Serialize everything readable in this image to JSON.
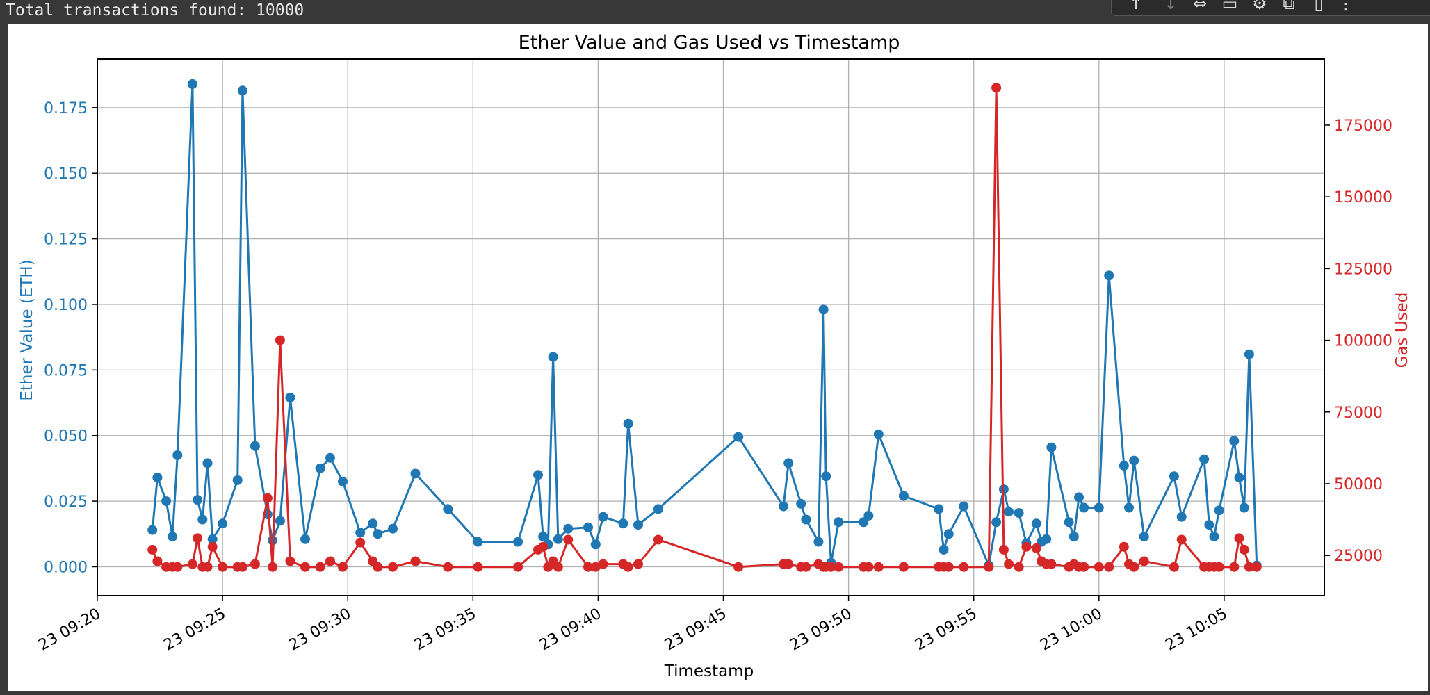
{
  "console": {
    "output_line": "Total transactions found: 10000"
  },
  "toolbar": {
    "icons": [
      "move-up-icon",
      "move-down-icon",
      "link-icon",
      "comment-icon",
      "settings-icon",
      "open-in-tab-icon",
      "delete-icon",
      "more-options-icon"
    ]
  },
  "colors": {
    "ether": "#1f77b4",
    "gas": "#d62728"
  },
  "chart_data": {
    "type": "line",
    "title": "Ether Value and Gas Used vs Timestamp",
    "xlabel": "Timestamp",
    "ylabel_left": "Ether Value (ETH)",
    "ylabel_right": "Gas Used",
    "x_unit": "minutes after 23 09:20",
    "xlim": [
      0,
      49
    ],
    "ylim_left": [
      -0.011,
      0.1935
    ],
    "ylim_right": [
      11000,
      198000
    ],
    "x_ticks": [
      0,
      5,
      10,
      15,
      20,
      25,
      30,
      35,
      40,
      45
    ],
    "x_tick_labels": [
      "23 09:20",
      "23 09:25",
      "23 09:30",
      "23 09:35",
      "23 09:40",
      "23 09:45",
      "23 09:50",
      "23 09:55",
      "23 10:00",
      "23 10:05"
    ],
    "y_ticks_left": [
      0.0,
      0.025,
      0.05,
      0.075,
      0.1,
      0.125,
      0.15,
      0.175
    ],
    "y_tick_labels_left": [
      "0.000",
      "0.025",
      "0.050",
      "0.075",
      "0.100",
      "0.125",
      "0.150",
      "0.175"
    ],
    "y_ticks_right": [
      25000,
      50000,
      75000,
      100000,
      125000,
      150000,
      175000
    ],
    "y_tick_labels_right": [
      "25000",
      "50000",
      "75000",
      "100000",
      "125000",
      "150000",
      "175000"
    ],
    "grid": true,
    "series": [
      {
        "name": "Ether Value (ETH)",
        "axis": "left",
        "x": [
          2.2,
          2.4,
          2.75,
          3.0,
          3.2,
          3.8,
          4.0,
          4.2,
          4.4,
          4.6,
          5.0,
          5.6,
          5.8,
          6.3,
          6.8,
          7.0,
          7.3,
          7.7,
          8.3,
          8.9,
          9.3,
          9.8,
          10.5,
          11.0,
          11.2,
          11.8,
          12.7,
          14.0,
          15.2,
          16.8,
          17.6,
          17.8,
          18.0,
          18.2,
          18.4,
          18.8,
          19.6,
          19.9,
          20.2,
          21.0,
          21.2,
          21.6,
          22.4,
          25.6,
          27.4,
          27.6,
          28.1,
          28.3,
          28.8,
          29.0,
          29.1,
          29.3,
          29.6,
          30.6,
          30.8,
          31.2,
          32.2,
          33.6,
          33.8,
          34.0,
          34.6,
          35.6,
          35.9,
          36.2,
          36.4,
          36.8,
          37.1,
          37.5,
          37.7,
          37.9,
          38.1,
          38.8,
          39.0,
          39.2,
          39.4,
          40.0,
          40.4,
          41.0,
          41.2,
          41.4,
          41.8,
          43.0,
          43.3,
          44.2,
          44.4,
          44.6,
          44.8,
          45.4,
          45.6,
          45.8,
          46.0,
          46.3
        ],
        "y": [
          0.014,
          0.034,
          0.025,
          0.0115,
          0.0425,
          0.184,
          0.0255,
          0.018,
          0.0395,
          0.0105,
          0.0165,
          0.033,
          0.1815,
          0.046,
          0.02,
          0.01,
          0.0175,
          0.0645,
          0.0105,
          0.0375,
          0.0415,
          0.0325,
          0.013,
          0.0165,
          0.0125,
          0.0145,
          0.0355,
          0.022,
          0.0095,
          0.0095,
          0.035,
          0.0115,
          0.0085,
          0.08,
          0.0105,
          0.0145,
          0.015,
          0.0085,
          0.019,
          0.0165,
          0.0545,
          0.016,
          0.022,
          0.0495,
          0.023,
          0.0395,
          0.024,
          0.018,
          0.0095,
          0.098,
          0.0345,
          0.0015,
          0.017,
          0.017,
          0.0195,
          0.0505,
          0.027,
          0.022,
          0.0065,
          0.0125,
          0.023,
          0.0005,
          0.017,
          0.0295,
          0.021,
          0.0205,
          0.009,
          0.0165,
          0.0095,
          0.0105,
          0.0455,
          0.017,
          0.0115,
          0.0265,
          0.0225,
          0.0225,
          0.111,
          0.0385,
          0.0225,
          0.0405,
          0.0115,
          0.0345,
          0.019,
          0.041,
          0.016,
          0.0115,
          0.0215,
          0.048,
          0.034,
          0.0225,
          0.081,
          0.0005
        ]
      },
      {
        "name": "Gas Used",
        "axis": "right",
        "x": [
          2.2,
          2.4,
          2.75,
          3.0,
          3.2,
          3.8,
          4.0,
          4.2,
          4.4,
          4.6,
          5.0,
          5.6,
          5.8,
          6.3,
          6.8,
          7.0,
          7.3,
          7.7,
          8.3,
          8.9,
          9.3,
          9.8,
          10.5,
          11.0,
          11.2,
          11.8,
          12.7,
          14.0,
          15.2,
          16.8,
          17.6,
          17.8,
          18.0,
          18.2,
          18.4,
          18.8,
          19.6,
          19.9,
          20.2,
          21.0,
          21.2,
          21.6,
          22.4,
          25.6,
          27.4,
          27.6,
          28.1,
          28.3,
          28.8,
          29.0,
          29.1,
          29.3,
          29.6,
          30.6,
          30.8,
          31.2,
          32.2,
          33.6,
          33.8,
          34.0,
          34.6,
          35.6,
          35.9,
          36.2,
          36.4,
          36.8,
          37.1,
          37.5,
          37.7,
          37.9,
          38.1,
          38.8,
          39.0,
          39.2,
          39.4,
          40.0,
          40.4,
          41.0,
          41.2,
          41.4,
          41.8,
          43.0,
          43.3,
          44.2,
          44.4,
          44.6,
          44.8,
          45.4,
          45.6,
          45.8,
          46.0,
          46.3
        ],
        "y": [
          27000,
          23000,
          21000,
          21000,
          21000,
          22000,
          31000,
          21000,
          21000,
          28000,
          21000,
          21000,
          21000,
          22000,
          45000,
          21000,
          100000,
          23000,
          21000,
          21000,
          23000,
          21000,
          29500,
          23000,
          21000,
          21000,
          23000,
          21000,
          21000,
          21000,
          27000,
          28000,
          21000,
          23000,
          21000,
          30500,
          21000,
          21000,
          22000,
          22000,
          21000,
          22000,
          30500,
          21000,
          22000,
          22000,
          21000,
          21000,
          22000,
          21000,
          21000,
          21000,
          21000,
          21000,
          21000,
          21000,
          21000,
          21000,
          21000,
          21000,
          21000,
          21000,
          188000,
          27000,
          22000,
          21000,
          28000,
          27500,
          23000,
          22000,
          22000,
          21000,
          22000,
          21000,
          21000,
          21000,
          21000,
          28000,
          22000,
          21000,
          23000,
          21000,
          30500,
          21000,
          21000,
          21000,
          21000,
          21000,
          31000,
          27000,
          21000,
          21000
        ]
      }
    ]
  }
}
